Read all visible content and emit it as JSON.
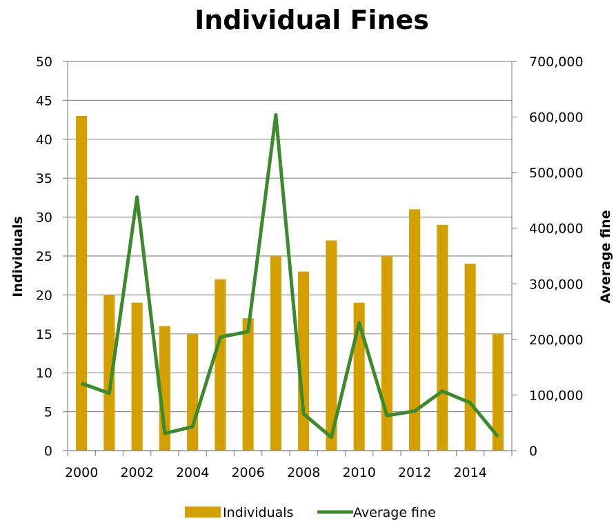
{
  "chart_data": {
    "type": "bar+line",
    "title": "Individual Fines",
    "ylabel_left": "Individuals",
    "ylabel_right": "Average fine",
    "x": [
      2000,
      2001,
      2002,
      2003,
      2004,
      2005,
      2006,
      2007,
      2008,
      2009,
      2010,
      2011,
      2012,
      2013,
      2014,
      2015
    ],
    "x_tick_labels": [
      "2000",
      "2002",
      "2004",
      "2006",
      "2008",
      "2010",
      "2012",
      "2014"
    ],
    "y_left_ticks": [
      "0",
      "5",
      "10",
      "15",
      "20",
      "25",
      "30",
      "35",
      "40",
      "45",
      "50"
    ],
    "y_right_ticks": [
      "0",
      "100,000",
      "200,000",
      "300,000",
      "400,000",
      "500,000",
      "600,000",
      "700,000"
    ],
    "ylim_left": [
      0,
      50
    ],
    "ylim_right": [
      0,
      700000
    ],
    "grid": "horizontal",
    "legend_position": "bottom",
    "series": [
      {
        "name": "Individuals",
        "type": "bar",
        "axis": "left",
        "color": "#d4a000",
        "values": [
          43,
          20,
          19,
          16,
          15,
          22,
          17,
          25,
          23,
          27,
          19,
          25,
          31,
          29,
          24,
          15
        ]
      },
      {
        "name": "Average fine",
        "type": "line",
        "axis": "right",
        "color": "#3c8a2e",
        "values": [
          121000,
          103000,
          456000,
          31000,
          43000,
          204000,
          214000,
          604000,
          66000,
          24000,
          230000,
          63000,
          71000,
          107000,
          86000,
          25000
        ]
      }
    ]
  }
}
